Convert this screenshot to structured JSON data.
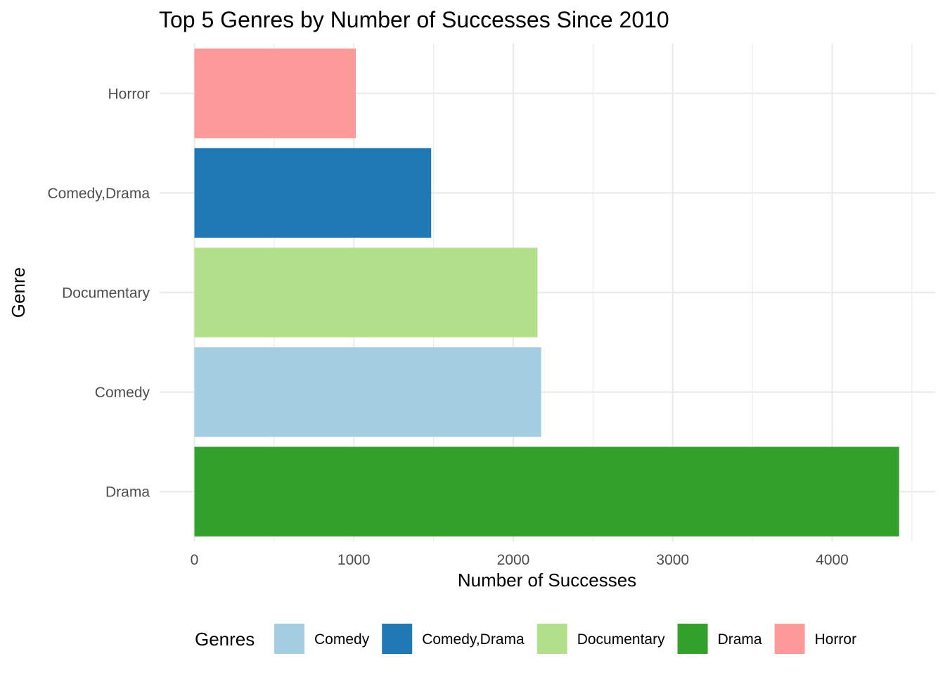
{
  "chart_data": {
    "type": "bar",
    "orientation": "horizontal",
    "title": "Top 5 Genres by Number of Successes Since 2010",
    "xlabel": "Number of Successes",
    "ylabel": "Genre",
    "categories": [
      "Drama",
      "Comedy",
      "Documentary",
      "Comedy,Drama",
      "Horror"
    ],
    "values": [
      4420,
      2175,
      2152,
      1485,
      1012
    ],
    "colors": [
      "#33a02c",
      "#a6cee3",
      "#b2df8a",
      "#1f78b4",
      "#fb9a99"
    ],
    "xlim": [
      0,
      4500
    ],
    "x_ticks": [
      0,
      1000,
      2000,
      3000,
      4000
    ],
    "x_tick_labels": [
      "0",
      "1000",
      "2000",
      "3000",
      "4000"
    ],
    "grid": true,
    "legend": {
      "title": "Genres",
      "position": "bottom",
      "items": [
        {
          "label": "Comedy",
          "color": "#a6cee3"
        },
        {
          "label": "Comedy,Drama",
          "color": "#1f78b4"
        },
        {
          "label": "Documentary",
          "color": "#b2df8a"
        },
        {
          "label": "Drama",
          "color": "#33a02c"
        },
        {
          "label": "Horror",
          "color": "#fb9a99"
        }
      ]
    }
  }
}
